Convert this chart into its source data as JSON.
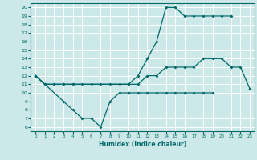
{
  "xlabel": "Humidex (Indice chaleur)",
  "bg_color": "#cce8e8",
  "grid_color": "#ffffff",
  "line_color": "#006868",
  "xlim": [
    -0.5,
    23.5
  ],
  "ylim": [
    5.5,
    20.5
  ],
  "xticks": [
    0,
    1,
    2,
    3,
    4,
    5,
    6,
    7,
    8,
    9,
    10,
    11,
    12,
    13,
    14,
    15,
    16,
    17,
    18,
    19,
    20,
    21,
    22,
    23
  ],
  "yticks": [
    6,
    7,
    8,
    9,
    10,
    11,
    12,
    13,
    14,
    15,
    16,
    17,
    18,
    19,
    20
  ],
  "line1_x": [
    0,
    1,
    2,
    3,
    4,
    10,
    11,
    12,
    13,
    14,
    15,
    16,
    17,
    18,
    19,
    20,
    21
  ],
  "line1_y": [
    12,
    11,
    11,
    11,
    11,
    11,
    12,
    14,
    16,
    20,
    20,
    19,
    19,
    19,
    19,
    19,
    19
  ],
  "line2_x": [
    0,
    1,
    2,
    3,
    4,
    5,
    6,
    7,
    8,
    9,
    10,
    11,
    12,
    13,
    14,
    15,
    16,
    17,
    18,
    19,
    20,
    21,
    22,
    23
  ],
  "line2_y": [
    12,
    11,
    11,
    11,
    11,
    11,
    11,
    11,
    11,
    11,
    11,
    11,
    12,
    12,
    13,
    13,
    13,
    13,
    14,
    14,
    14,
    13,
    13,
    10.5
  ],
  "line3_x": [
    0,
    3,
    4,
    5,
    6,
    7,
    8,
    9,
    10,
    11,
    12,
    13,
    14,
    15,
    16,
    17,
    18,
    19
  ],
  "line3_y": [
    12,
    9,
    8,
    7,
    7,
    6,
    9,
    10,
    10,
    10,
    10,
    10,
    10,
    10,
    10,
    10,
    10,
    10
  ]
}
